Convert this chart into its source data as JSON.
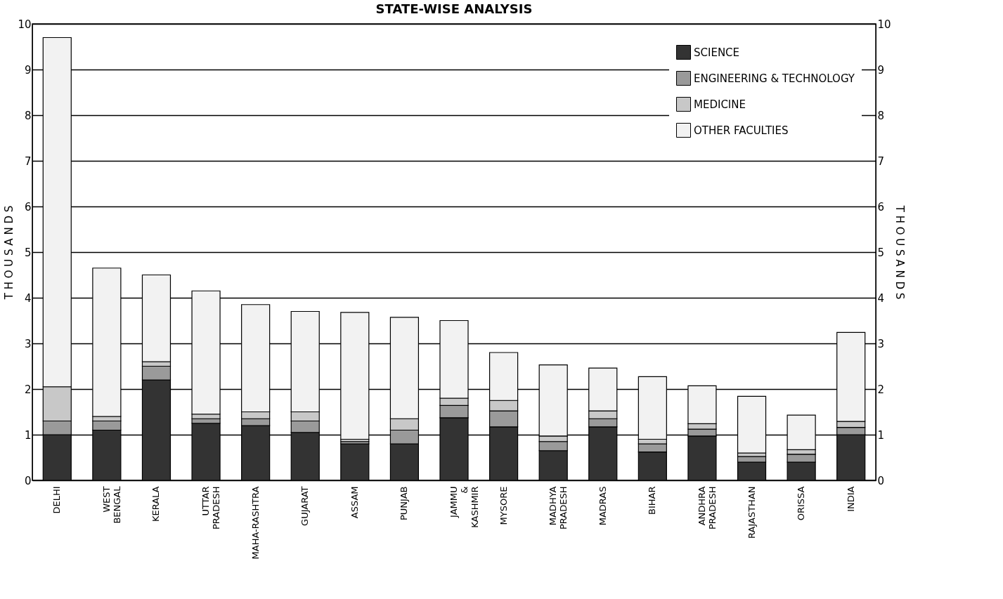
{
  "chart_data": {
    "type": "bar",
    "title": "STATE-WISE ANALYSIS",
    "ylabel": "T H O U S A N D S",
    "y2label": "T H O U S A N D S",
    "categories": [
      "DELHI",
      "WEST BENGAL",
      "KERALA",
      "UTTAR PRADESH",
      "MAHA-RASHTRA",
      "GUJARAT",
      "ASSAM",
      "PUNJAB",
      "JAMMU & KASHMIR",
      "MYSORE",
      "MADHYA PRADESH",
      "MADRAS",
      "BIHAR",
      "ANDHRA PRADESH",
      "RAJASTHAN",
      "ORISSA",
      "INDIA"
    ],
    "stacked": true,
    "series": [
      {
        "name": "SCIENCE",
        "color": "#333333",
        "values": [
          1.0,
          1.1,
          2.2,
          1.25,
          1.2,
          1.05,
          0.8,
          0.8,
          1.37,
          1.17,
          0.65,
          1.17,
          0.62,
          0.97,
          0.4,
          0.4,
          1.0
        ]
      },
      {
        "name": "ENGINEERING & TECHNOLOGY",
        "color": "#9a9a9a",
        "values": [
          0.3,
          0.2,
          0.3,
          0.1,
          0.15,
          0.25,
          0.05,
          0.3,
          0.27,
          0.35,
          0.2,
          0.18,
          0.18,
          0.15,
          0.12,
          0.17,
          0.16
        ]
      },
      {
        "name": "MEDICINE",
        "color": "#c8c8c8",
        "values": [
          0.75,
          0.1,
          0.1,
          0.1,
          0.15,
          0.2,
          0.05,
          0.25,
          0.16,
          0.23,
          0.12,
          0.17,
          0.1,
          0.12,
          0.08,
          0.1,
          0.13
        ]
      },
      {
        "name": "OTHER FACULTIES",
        "color": "#f2f2f2",
        "values": [
          7.65,
          3.25,
          1.9,
          2.7,
          2.35,
          2.2,
          2.78,
          2.22,
          1.7,
          1.05,
          1.56,
          0.94,
          1.37,
          0.83,
          1.24,
          0.76,
          1.95
        ]
      }
    ],
    "ylim": [
      0,
      10
    ],
    "yticks": [
      0,
      1,
      2,
      3,
      4,
      5,
      6,
      7,
      8,
      9,
      10
    ],
    "y2lim": [
      0,
      10
    ],
    "y2ticks": [
      0,
      1,
      2,
      3,
      4,
      5,
      6,
      7,
      8,
      9,
      10
    ],
    "grid": "y",
    "legend": "top right"
  }
}
